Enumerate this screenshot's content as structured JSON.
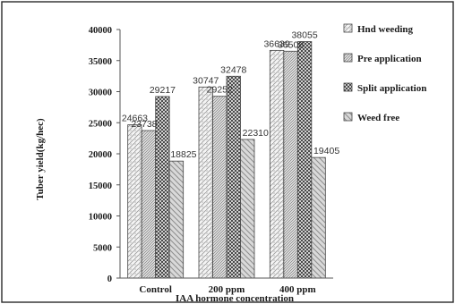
{
  "chart_data": {
    "type": "bar",
    "categories": [
      "Control",
      "200 ppm",
      "400 ppm"
    ],
    "series": [
      {
        "name": "Hnd weeding",
        "values": [
          24663,
          30747,
          36639
        ],
        "pattern": "diag-dots"
      },
      {
        "name": "Pre application",
        "values": [
          23738,
          29252,
          36508
        ],
        "pattern": "diag-fine"
      },
      {
        "name": "Split application",
        "values": [
          29217,
          32478,
          38055
        ],
        "pattern": "checker"
      },
      {
        "name": "Weed free",
        "values": [
          18825,
          22310,
          19405
        ],
        "pattern": "diag-wide"
      }
    ],
    "title": "",
    "xlabel": "IAA hormone concentration",
    "ylabel": "Tuber yield(kg/hec)",
    "ylim": [
      0,
      40000
    ],
    "yticks": [
      0,
      5000,
      10000,
      15000,
      20000,
      25000,
      30000,
      35000,
      40000
    ],
    "grid": false,
    "legend": "right"
  }
}
